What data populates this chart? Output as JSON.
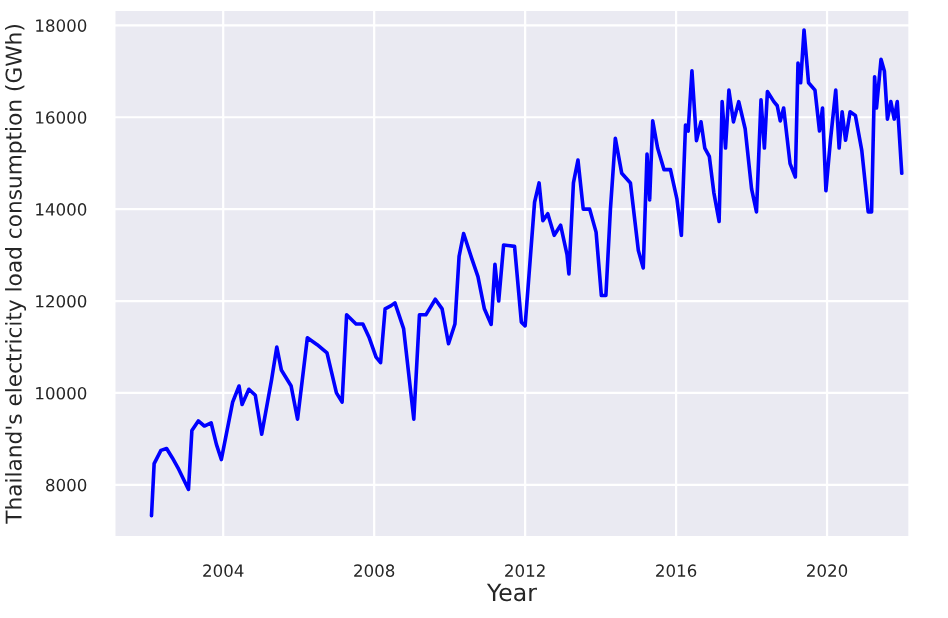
{
  "chart_data": {
    "type": "line",
    "xlabel": "Year",
    "ylabel": "Thailand's electricity load consumption (GWh)",
    "xlim": [
      2001.1,
      2022.2
    ],
    "ylim": [
      6850,
      18350
    ],
    "xticks": [
      2004,
      2008,
      2012,
      2016,
      2020
    ],
    "yticks": [
      8000,
      10000,
      12000,
      14000,
      16000,
      18000
    ],
    "grid": true,
    "marker": "none",
    "line_style": "solid",
    "series": [
      {
        "color": "#0000ff",
        "x": [
          2002.1,
          2002.17,
          2002.35,
          2002.5,
          2002.65,
          2002.82,
          2003.08,
          2003.17,
          2003.34,
          2003.5,
          2003.68,
          2003.82,
          2003.95,
          2004.25,
          2004.42,
          2004.5,
          2004.68,
          2004.85,
          2005.02,
          2005.28,
          2005.42,
          2005.54,
          2005.8,
          2005.97,
          2006.23,
          2006.49,
          2006.75,
          2007.0,
          2007.15,
          2007.27,
          2007.52,
          2007.7,
          2007.87,
          2008.05,
          2008.17,
          2008.29,
          2008.45,
          2008.55,
          2008.78,
          2009.05,
          2009.2,
          2009.37,
          2009.62,
          2009.8,
          2009.97,
          2010.14,
          2010.25,
          2010.37,
          2010.58,
          2010.75,
          2010.92,
          2011.1,
          2011.2,
          2011.3,
          2011.43,
          2011.72,
          2011.9,
          2012.0,
          2012.25,
          2012.37,
          2012.47,
          2012.6,
          2012.77,
          2012.94,
          2013.11,
          2013.16,
          2013.28,
          2013.4,
          2013.54,
          2013.71,
          2013.88,
          2014.02,
          2014.14,
          2014.26,
          2014.39,
          2014.56,
          2014.79,
          2015.0,
          2015.13,
          2015.23,
          2015.3,
          2015.38,
          2015.51,
          2015.68,
          2015.85,
          2016.02,
          2016.14,
          2016.25,
          2016.32,
          2016.42,
          2016.54,
          2016.66,
          2016.76,
          2016.88,
          2017.0,
          2017.14,
          2017.22,
          2017.31,
          2017.4,
          2017.52,
          2017.66,
          2017.83,
          2018.0,
          2018.13,
          2018.25,
          2018.34,
          2018.42,
          2018.59,
          2018.68,
          2018.76,
          2018.85,
          2019.02,
          2019.16,
          2019.23,
          2019.3,
          2019.39,
          2019.51,
          2019.68,
          2019.8,
          2019.88,
          2019.97,
          2020.09,
          2020.23,
          2020.32,
          2020.4,
          2020.49,
          2020.61,
          2020.75,
          2020.92,
          2021.09,
          2021.18,
          2021.26,
          2021.31,
          2021.43,
          2021.52,
          2021.6,
          2021.69,
          2021.78,
          2021.86,
          2021.98
        ],
        "values": [
          7330,
          8460,
          8750,
          8790,
          8590,
          8340,
          7900,
          9180,
          9390,
          9280,
          9350,
          8880,
          8550,
          9800,
          10150,
          9750,
          10080,
          9950,
          9100,
          10280,
          11000,
          10500,
          10150,
          9430,
          11200,
          11050,
          10870,
          10000,
          9800,
          11700,
          11500,
          11500,
          11200,
          10780,
          10660,
          11830,
          11900,
          11960,
          11400,
          9430,
          11700,
          11700,
          12040,
          11830,
          11070,
          11500,
          12970,
          13470,
          12940,
          12530,
          11830,
          11490,
          12800,
          12000,
          13220,
          13190,
          11540,
          11460,
          14150,
          14570,
          13750,
          13900,
          13430,
          13650,
          13010,
          12590,
          14570,
          15070,
          14000,
          14000,
          13500,
          12120,
          12120,
          14000,
          15540,
          14780,
          14570,
          13100,
          12720,
          15200,
          14200,
          15920,
          15330,
          14860,
          14860,
          14230,
          13430,
          15830,
          15700,
          17010,
          15490,
          15900,
          15330,
          15150,
          14360,
          13730,
          16340,
          15330,
          16590,
          15900,
          16340,
          15750,
          14440,
          13940,
          16380,
          15330,
          16560,
          16340,
          16250,
          15920,
          16200,
          14990,
          14700,
          17180,
          16750,
          17900,
          16750,
          16590,
          15700,
          16200,
          14400,
          15500,
          16590,
          15330,
          16120,
          15500,
          16120,
          16040,
          15280,
          13940,
          13940,
          16880,
          16200,
          17260,
          17000,
          15960,
          16340,
          15960,
          16340,
          14780
        ]
      }
    ]
  }
}
